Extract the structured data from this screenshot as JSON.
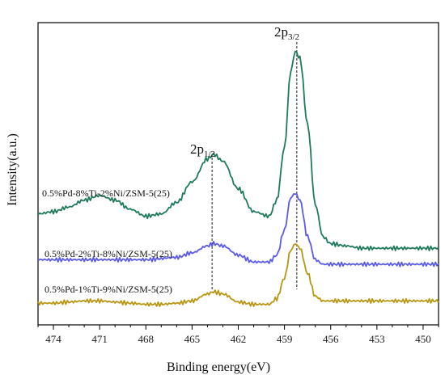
{
  "chart_data": {
    "type": "line",
    "title": "",
    "xlabel": "Binding energy(eV)",
    "ylabel": "Intensity(a.u.)",
    "xlim": [
      475,
      449
    ],
    "x_reversed": true,
    "x_ticks": [
      474,
      471,
      468,
      465,
      462,
      459,
      456,
      453,
      450
    ],
    "y_ticks_shown": false,
    "grid": false,
    "series": [
      {
        "name": "0.5%Pd-8%Ti-2%Ni/ZSM-5(25)",
        "color": "#1f7a5a",
        "x": [
          475.0,
          474.0,
          473.0,
          472.0,
          471.0,
          470.0,
          469.0,
          468.0,
          467.0,
          466.0,
          465.0,
          464.0,
          463.6,
          463.0,
          462.0,
          461.0,
          460.0,
          459.5,
          459.0,
          458.6,
          458.3,
          458.0,
          457.5,
          457.0,
          456.5,
          456.0,
          455.0,
          454.0,
          453.0,
          452.0,
          451.0,
          450.0,
          449.0
        ],
        "y": [
          0.46,
          0.47,
          0.49,
          0.52,
          0.54,
          0.52,
          0.48,
          0.45,
          0.46,
          0.51,
          0.6,
          0.7,
          0.72,
          0.69,
          0.57,
          0.47,
          0.45,
          0.52,
          0.75,
          1.08,
          1.17,
          1.14,
          0.85,
          0.5,
          0.36,
          0.33,
          0.32,
          0.31,
          0.31,
          0.31,
          0.31,
          0.31,
          0.31
        ]
      },
      {
        "name": "0.5%Pd-2%Ti-8%Ni/ZSM-5(25)",
        "color": "#5b5bea",
        "x": [
          475.0,
          474.0,
          472.0,
          470.0,
          468.0,
          466.0,
          465.0,
          464.0,
          463.6,
          463.0,
          462.0,
          461.0,
          460.0,
          459.5,
          459.0,
          458.6,
          458.3,
          458.0,
          457.5,
          457.0,
          456.5,
          456.0,
          454.0,
          452.0,
          450.0,
          449.0
        ],
        "y": [
          0.26,
          0.26,
          0.26,
          0.26,
          0.26,
          0.27,
          0.29,
          0.32,
          0.33,
          0.32,
          0.28,
          0.25,
          0.25,
          0.28,
          0.39,
          0.53,
          0.55,
          0.52,
          0.36,
          0.26,
          0.24,
          0.24,
          0.24,
          0.24,
          0.24,
          0.24
        ]
      },
      {
        "name": "0.5%Pd-1%Ti-9%Ni/ZSM-5(25)",
        "color": "#b89612",
        "x": [
          475.0,
          474.0,
          473.0,
          472.0,
          471.0,
          470.0,
          469.0,
          468.0,
          467.0,
          466.0,
          465.0,
          464.0,
          463.6,
          463.0,
          462.0,
          461.0,
          460.0,
          459.5,
          459.0,
          458.6,
          458.3,
          458.0,
          457.5,
          457.0,
          456.5,
          456.0,
          454.0,
          452.0,
          450.0,
          449.0
        ],
        "y": [
          0.07,
          0.07,
          0.075,
          0.08,
          0.08,
          0.075,
          0.07,
          0.065,
          0.065,
          0.07,
          0.08,
          0.11,
          0.12,
          0.11,
          0.075,
          0.065,
          0.065,
          0.09,
          0.18,
          0.3,
          0.33,
          0.31,
          0.2,
          0.1,
          0.08,
          0.08,
          0.08,
          0.08,
          0.08,
          0.08
        ]
      }
    ],
    "annotations": [
      {
        "main": "2p",
        "sub": "1/2",
        "x": 463.7
      },
      {
        "main": "2p",
        "sub": "3/2",
        "x": 458.2
      }
    ]
  }
}
